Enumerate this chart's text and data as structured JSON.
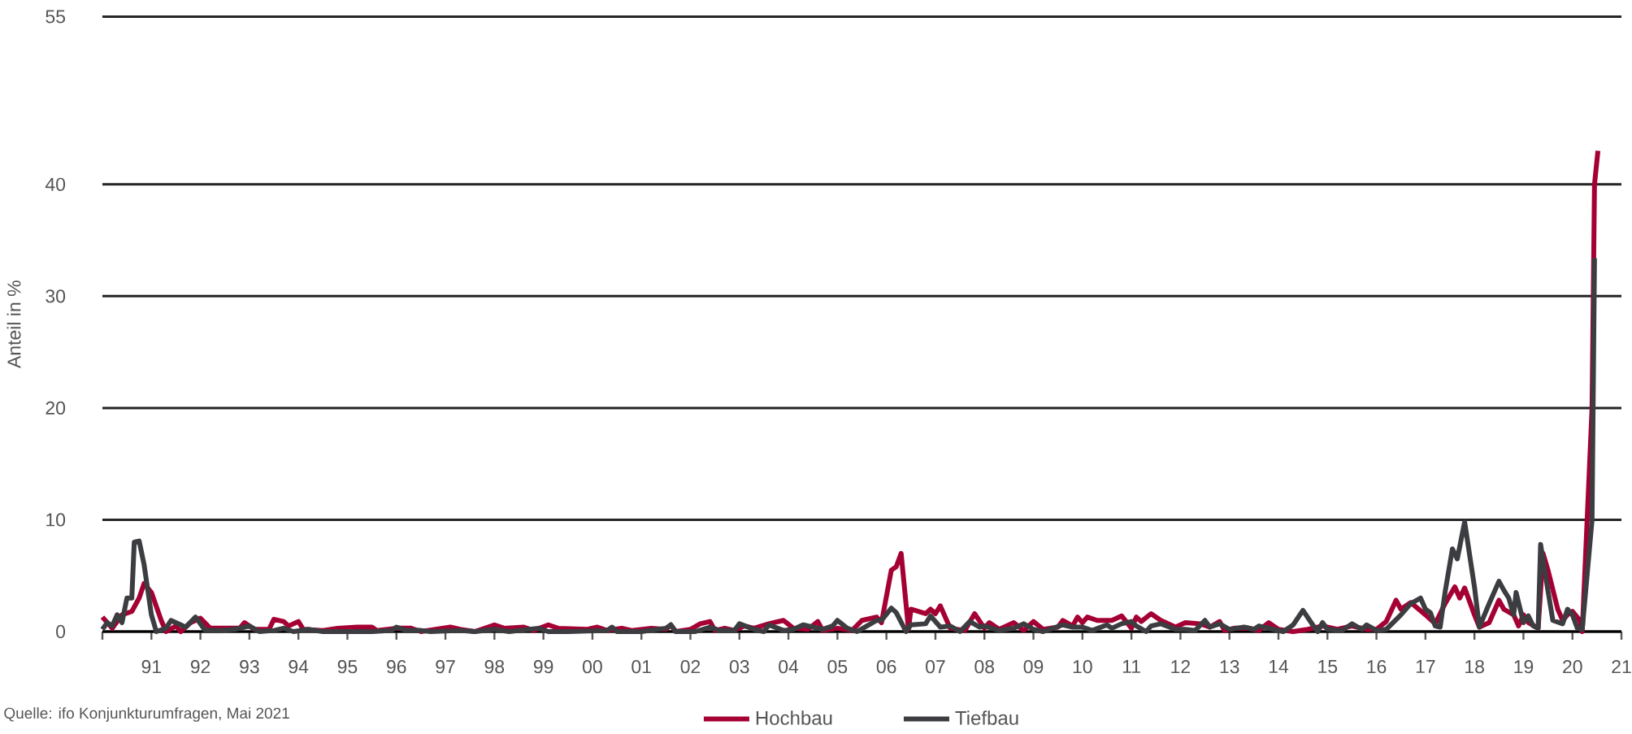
{
  "chart_data": {
    "type": "line",
    "ylabel": "Anteil in %",
    "annotations": [
      "Quelle: ifo Konjunkturumfragen, Mai 2021"
    ],
    "xlim": [
      1990,
      2021
    ],
    "xticks": [
      {
        "value": 1990,
        "label": null
      },
      {
        "value": 1991,
        "label": "91"
      },
      {
        "value": 1992,
        "label": "92"
      },
      {
        "value": 1993,
        "label": "93"
      },
      {
        "value": 1994,
        "label": "94"
      },
      {
        "value": 1995,
        "label": "95"
      },
      {
        "value": 1996,
        "label": "96"
      },
      {
        "value": 1997,
        "label": "97"
      },
      {
        "value": 1998,
        "label": "98"
      },
      {
        "value": 1999,
        "label": "99"
      },
      {
        "value": 2000,
        "label": "00"
      },
      {
        "value": 2001,
        "label": "01"
      },
      {
        "value": 2002,
        "label": "02"
      },
      {
        "value": 2003,
        "label": "03"
      },
      {
        "value": 2004,
        "label": "04"
      },
      {
        "value": 2005,
        "label": "05"
      },
      {
        "value": 2006,
        "label": "06"
      },
      {
        "value": 2007,
        "label": "07"
      },
      {
        "value": 2008,
        "label": "08"
      },
      {
        "value": 2009,
        "label": "09"
      },
      {
        "value": 2010,
        "label": "10"
      },
      {
        "value": 2011,
        "label": "11"
      },
      {
        "value": 2012,
        "label": "12"
      },
      {
        "value": 2013,
        "label": "13"
      },
      {
        "value": 2014,
        "label": "14"
      },
      {
        "value": 2015,
        "label": "15"
      },
      {
        "value": 2016,
        "label": "16"
      },
      {
        "value": 2017,
        "label": "17"
      },
      {
        "value": 2018,
        "label": "18"
      },
      {
        "value": 2019,
        "label": "19"
      },
      {
        "value": 2020,
        "label": "20"
      },
      {
        "value": 2021,
        "label": "21"
      }
    ],
    "ylim": [
      0,
      55
    ],
    "yticks": [
      0,
      10,
      20,
      30,
      40,
      55
    ],
    "grid": "y",
    "legend": "bottom",
    "series": [
      {
        "name": "Hochbau",
        "color": "#a50034",
        "x": [
          1990.0,
          1990.2,
          1990.4,
          1990.6,
          1990.75,
          1990.85,
          1991.0,
          1991.2,
          1991.3,
          1991.5,
          1991.6,
          1991.8,
          1992.0,
          1992.2,
          1992.5,
          1992.8,
          1992.9,
          1993.1,
          1993.4,
          1993.5,
          1993.7,
          1993.8,
          1994.0,
          1994.1,
          1994.5,
          1994.8,
          1995.2,
          1995.5,
          1995.6,
          1996.0,
          1996.3,
          1996.5,
          1996.8,
          1997.1,
          1997.3,
          1997.6,
          1998.0,
          1998.2,
          1998.6,
          1998.8,
          1999.1,
          1999.3,
          1999.9,
          2000.1,
          2000.3,
          2000.6,
          2000.8,
          2001.2,
          2001.5,
          2001.6,
          2001.7,
          2002.0,
          2002.2,
          2002.4,
          2002.5,
          2002.7,
          2002.9,
          2003.1,
          2003.3,
          2003.6,
          2003.9,
          2004.1,
          2004.4,
          2004.6,
          2004.7,
          2005.0,
          2005.3,
          2005.5,
          2005.8,
          2005.9,
          2006.1,
          2006.2,
          2006.3,
          2006.45,
          2006.5,
          2006.8,
          2006.9,
          2007.0,
          2007.1,
          2007.3,
          2007.6,
          2007.8,
          2008.0,
          2008.1,
          2008.3,
          2008.6,
          2008.8,
          2009.0,
          2009.2,
          2009.5,
          2009.6,
          2009.8,
          2009.9,
          2010.0,
          2010.1,
          2010.3,
          2010.6,
          2010.8,
          2011.0,
          2011.1,
          2011.2,
          2011.4,
          2011.6,
          2011.9,
          2012.1,
          2012.4,
          2012.6,
          2012.8,
          2012.9,
          2013.1,
          2013.4,
          2013.6,
          2013.8,
          2014.0,
          2014.3,
          2014.6,
          2014.9,
          2015.2,
          2015.5,
          2015.8,
          2016.0,
          2016.2,
          2016.4,
          2016.5,
          2016.7,
          2017.0,
          2017.2,
          2017.4,
          2017.6,
          2017.7,
          2017.8,
          2018.0,
          2018.1,
          2018.3,
          2018.5,
          2018.6,
          2018.8,
          2018.9,
          2019.0,
          2019.1,
          2019.3,
          2019.4,
          2019.5,
          2019.7,
          2019.8,
          2019.9,
          2020.0,
          2020.15,
          2020.2,
          2020.4,
          2020.45,
          2020.52
        ],
        "values": [
          1.3,
          0.3,
          1.5,
          1.8,
          3.0,
          4.3,
          3.5,
          1.0,
          0,
          0.5,
          0,
          0.8,
          1.2,
          0.3,
          0.3,
          0.3,
          0.8,
          0.2,
          0.2,
          1.1,
          0.9,
          0.5,
          0.9,
          0.2,
          0.1,
          0.3,
          0.4,
          0.4,
          0.1,
          0.3,
          0.3,
          0,
          0.2,
          0.4,
          0.2,
          0,
          0.6,
          0.3,
          0.4,
          0.1,
          0.6,
          0.3,
          0.2,
          0.4,
          0.1,
          0.3,
          0.1,
          0.3,
          0.2,
          0.6,
          0,
          0.2,
          0.7,
          0.9,
          0.1,
          0.3,
          0.1,
          0.5,
          0.3,
          0.7,
          1.0,
          0.3,
          0.2,
          0.9,
          0.1,
          0.3,
          0.1,
          1.0,
          1.3,
          0.8,
          5.5,
          5.8,
          7.0,
          0.2,
          2.0,
          1.6,
          2.0,
          1.6,
          2.3,
          0.3,
          0.1,
          1.6,
          0.3,
          0.8,
          0.2,
          0.8,
          0.1,
          0.9,
          0.2,
          0.4,
          1.0,
          0.5,
          1.3,
          0.8,
          1.3,
          1.0,
          1.0,
          1.4,
          0.3,
          1.3,
          0.9,
          1.6,
          1.0,
          0.4,
          0.8,
          0.7,
          0.4,
          0.9,
          0.1,
          0.3,
          0.3,
          0.1,
          0.8,
          0.2,
          0,
          0.2,
          0.5,
          0.2,
          0.5,
          0.2,
          0.2,
          0.9,
          2.8,
          2.0,
          2.6,
          1.5,
          0.7,
          2.5,
          4.0,
          3.0,
          3.9,
          1.5,
          0.4,
          0.8,
          2.8,
          2.0,
          1.5,
          0.5,
          1.5,
          0.8,
          0.3,
          7.0,
          5.5,
          2.0,
          1.0,
          1.5,
          1.8,
          1.0,
          0,
          20,
          40,
          43
        ]
      },
      {
        "name": "Tiefbau",
        "color": "#3c3d41",
        "x": [
          1990.0,
          1990.1,
          1990.2,
          1990.3,
          1990.4,
          1990.5,
          1990.6,
          1990.65,
          1990.75,
          1990.85,
          1991.0,
          1991.1,
          1991.3,
          1991.4,
          1991.6,
          1991.7,
          1991.9,
          1992.1,
          1992.4,
          1992.7,
          1992.9,
          1993.0,
          1993.2,
          1993.5,
          1993.7,
          1993.9,
          1994.2,
          1994.5,
          1995.0,
          1995.5,
          1995.9,
          1996.0,
          1996.2,
          1996.5,
          1996.7,
          1997.3,
          1997.6,
          1998.0,
          1998.3,
          1998.9,
          1999.1,
          1999.5,
          2000.3,
          2000.4,
          2000.5,
          2001.0,
          2001.5,
          2001.6,
          2001.7,
          2002.1,
          2002.4,
          2002.6,
          2002.9,
          2003.0,
          2003.3,
          2003.5,
          2003.6,
          2003.9,
          2004.1,
          2004.3,
          2004.5,
          2004.7,
          2004.9,
          2005.0,
          2005.2,
          2005.4,
          2005.6,
          2005.8,
          2005.9,
          2006.1,
          2006.2,
          2006.4,
          2006.5,
          2006.8,
          2006.9,
          2007.1,
          2007.3,
          2007.5,
          2007.7,
          2007.9,
          2008.0,
          2008.3,
          2008.6,
          2008.8,
          2009.0,
          2009.2,
          2009.6,
          2009.8,
          2010.0,
          2010.2,
          2010.5,
          2010.6,
          2010.8,
          2011.0,
          2011.1,
          2011.3,
          2011.4,
          2011.6,
          2011.9,
          2012.1,
          2012.3,
          2012.5,
          2012.6,
          2012.8,
          2013.0,
          2013.3,
          2013.5,
          2013.6,
          2013.9,
          2014.1,
          2014.3,
          2014.5,
          2014.7,
          2014.8,
          2014.9,
          2015.0,
          2015.3,
          2015.5,
          2015.7,
          2015.8,
          2016.0,
          2016.2,
          2016.5,
          2016.7,
          2016.9,
          2017.0,
          2017.1,
          2017.2,
          2017.3,
          2017.4,
          2017.55,
          2017.65,
          2017.8,
          2018.0,
          2018.1,
          2018.3,
          2018.5,
          2018.6,
          2018.7,
          2018.8,
          2018.85,
          2019.0,
          2019.1,
          2019.2,
          2019.3,
          2019.35,
          2019.45,
          2019.6,
          2019.8,
          2019.9,
          2020.0,
          2020.1,
          2020.2,
          2020.4,
          2020.45
        ],
        "values": [
          0.2,
          0.8,
          0.5,
          1.5,
          0.8,
          3.0,
          3.0,
          8.0,
          8.1,
          6.0,
          1.5,
          0,
          0.3,
          1.0,
          0.6,
          0.4,
          1.3,
          0.1,
          0.1,
          0.2,
          0.4,
          0.5,
          0,
          0.1,
          0.3,
          0,
          0.2,
          0,
          0,
          0,
          0.1,
          0.4,
          0.1,
          0.1,
          0,
          0.1,
          0,
          0.2,
          0,
          0.3,
          0,
          0,
          0.1,
          0.4,
          0,
          0,
          0.3,
          0.6,
          0,
          0,
          0.4,
          0.1,
          0.1,
          0.7,
          0.2,
          0,
          0.6,
          0.1,
          0.2,
          0.6,
          0.4,
          0.2,
          0.5,
          1.0,
          0.3,
          0,
          0.5,
          1.0,
          1.0,
          2.1,
          1.7,
          0,
          0.6,
          0.7,
          1.4,
          0.4,
          0.5,
          0,
          0.9,
          0.4,
          0.5,
          0.1,
          0.3,
          0.7,
          0.2,
          0,
          0.6,
          0.4,
          0.4,
          0.1,
          0.6,
          0.3,
          0.7,
          0.9,
          0.5,
          0,
          0.5,
          0.7,
          0.2,
          0.2,
          0.1,
          1.0,
          0.4,
          0.7,
          0.2,
          0.4,
          0.2,
          0.5,
          0.2,
          0,
          0.6,
          1.9,
          0.6,
          0,
          0.8,
          0.2,
          0.1,
          0.7,
          0.2,
          0.6,
          0.1,
          0.2,
          1.5,
          2.5,
          3.0,
          2.0,
          1.7,
          0.5,
          0.4,
          3.5,
          7.4,
          6.5,
          9.8,
          4.0,
          0.4,
          2.5,
          4.5,
          3.7,
          3.0,
          1.5,
          3.5,
          0.8,
          1.4,
          0.5,
          0.3,
          7.8,
          5.0,
          1.0,
          0.7,
          2.0,
          1.5,
          0.3,
          0.2,
          10,
          33.4
        ]
      }
    ]
  }
}
